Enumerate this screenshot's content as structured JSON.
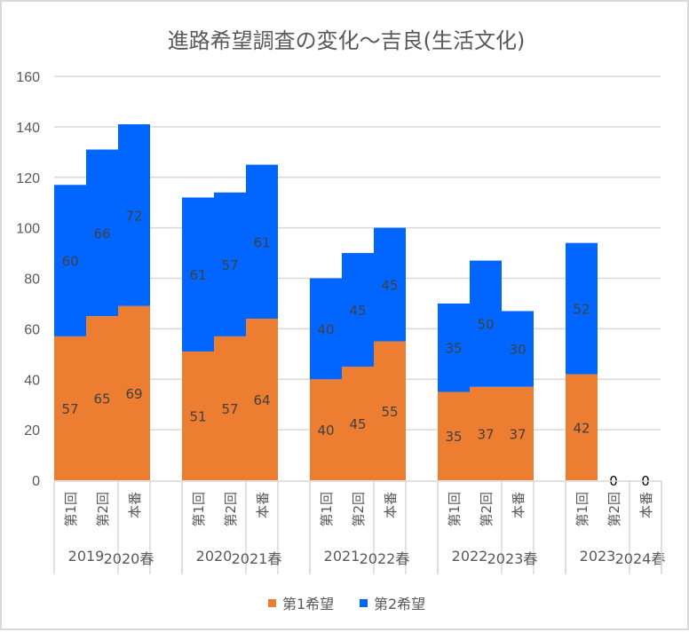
{
  "chart_data": {
    "type": "bar",
    "stacked": true,
    "title": "進路希望調査の変化～吉良(生活文化)",
    "xlabel": "",
    "ylabel": "",
    "ylim": [
      0,
      160
    ],
    "yticks": [
      0,
      20,
      40,
      60,
      80,
      100,
      120,
      140,
      160
    ],
    "grid": true,
    "legend_position": "bottom",
    "groups": [
      {
        "labels": [
          "2019",
          "2020春"
        ],
        "categories": [
          "第1回",
          "第2回",
          "本番"
        ],
        "blank_after": true
      },
      {
        "labels": [
          "2020",
          "2021春"
        ],
        "categories": [
          "第1回",
          "第2回",
          "本番"
        ],
        "blank_after": true
      },
      {
        "labels": [
          "2021",
          "2022春"
        ],
        "categories": [
          "第1回",
          "第2回",
          "本番"
        ],
        "blank_after": true
      },
      {
        "labels": [
          "2022",
          "2023春"
        ],
        "categories": [
          "第1回",
          "第2回",
          "本番"
        ],
        "blank_after": true
      },
      {
        "labels": [
          "2023",
          "2024春"
        ],
        "categories": [
          "第1回",
          "第2回",
          "本番"
        ],
        "blank_after": false
      }
    ],
    "series": [
      {
        "name": "第1希望",
        "color": "#ED7D31",
        "values": [
          57,
          65,
          69,
          51,
          57,
          64,
          40,
          45,
          55,
          35,
          37,
          37,
          42,
          0,
          0
        ]
      },
      {
        "name": "第2希望",
        "color": "#0066FF",
        "values": [
          60,
          66,
          72,
          61,
          57,
          61,
          40,
          45,
          45,
          35,
          50,
          30,
          52,
          0,
          0
        ]
      }
    ],
    "zero_labels": [
      "0",
      "0"
    ]
  }
}
